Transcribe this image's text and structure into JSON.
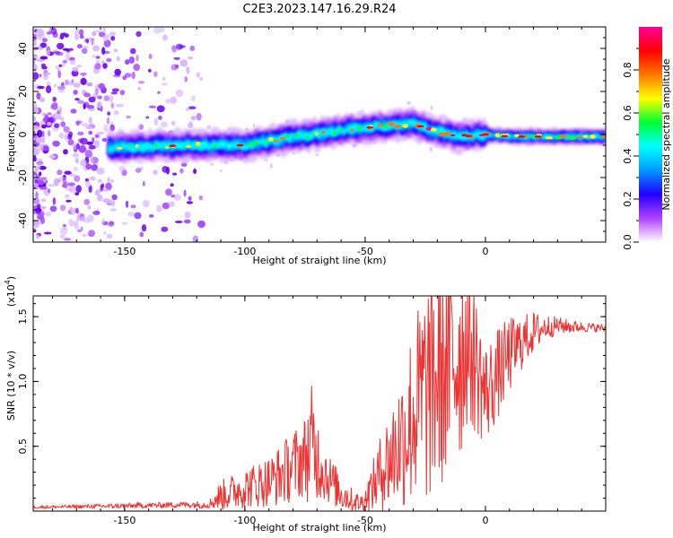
{
  "title": "C2E3.2023.147.16.29.R24",
  "chart_data": [
    {
      "type": "heatmap",
      "panel": "spectrogram",
      "xlabel": "Height of straight line (km)",
      "ylabel": "Frequency (Hz)",
      "xlim": [
        -188,
        50
      ],
      "ylim": [
        -50,
        50
      ],
      "xticks": [
        -150,
        -100,
        -50,
        0
      ],
      "yticks": [
        -40,
        -20,
        0,
        20,
        40
      ],
      "colorbar": {
        "label": "Normalized spectral amplitude",
        "range": [
          0.0,
          1.0
        ],
        "ticks": [
          0.0,
          0.2,
          0.4,
          0.6,
          0.8
        ],
        "colors": [
          "#ffffff",
          "#b040ff",
          "#2200ff",
          "#0099ff",
          "#00ffff",
          "#00ff33",
          "#ffff00",
          "#ff7700",
          "#ff0000",
          "#ff0099"
        ]
      },
      "ridge": {
        "height_km": [
          -188,
          -155,
          -120,
          -100,
          -90,
          -80,
          -70,
          -60,
          -50,
          -40,
          -30,
          -25,
          -20,
          -10,
          0,
          10,
          20,
          30,
          40,
          50
        ],
        "frequency_hz": [
          -5,
          -6,
          -5,
          -5,
          -3,
          -1,
          0,
          2,
          3,
          4,
          5,
          3,
          1,
          -1,
          0,
          -1,
          -1,
          -1,
          -1,
          -1
        ]
      }
    },
    {
      "type": "line",
      "panel": "snr",
      "xlabel": "Height of straight line (km)",
      "ylabel": "SNR (10 * v/v)",
      "y_scale_label": "(x10",
      "y_scale_exp": "4",
      "xlim": [
        -188,
        50
      ],
      "ylim": [
        0,
        16600
      ],
      "xticks": [
        -150,
        -100,
        -50,
        0
      ],
      "yticks": [
        5000,
        10000,
        15000
      ],
      "ytick_labels": [
        "0.5",
        "1.0",
        "1.5"
      ],
      "color": "#ee3333",
      "series": [
        {
          "name": "SNR",
          "x": [
            -188,
            -150,
            -125,
            -115,
            -110,
            -100,
            -90,
            -85,
            -80,
            -75,
            -72,
            -70,
            -65,
            -60,
            -55,
            -52,
            -50,
            -45,
            -40,
            -35,
            -30,
            -25,
            -20,
            -15,
            -10,
            -8,
            -5,
            0,
            5,
            10,
            15,
            20,
            25,
            30,
            40,
            50
          ],
          "y": [
            300,
            400,
            500,
            500,
            1200,
            1800,
            2300,
            2800,
            3500,
            4200,
            5000,
            4200,
            2500,
            1400,
            800,
            600,
            900,
            2500,
            4000,
            5500,
            7500,
            9000,
            10500,
            11500,
            12500,
            13500,
            12000,
            9000,
            10500,
            12000,
            13000,
            13800,
            14200,
            14300,
            14200,
            14100
          ],
          "jitter": [
            100,
            200,
            250,
            300,
            1200,
            1600,
            2000,
            2400,
            2800,
            3200,
            5000,
            3400,
            2000,
            1400,
            900,
            700,
            900,
            2600,
            4000,
            5400,
            7400,
            8800,
            9500,
            9000,
            8600,
            7000,
            6000,
            4000,
            3600,
            3000,
            2200,
            1600,
            1000,
            700,
            400,
            300
          ]
        }
      ]
    }
  ]
}
